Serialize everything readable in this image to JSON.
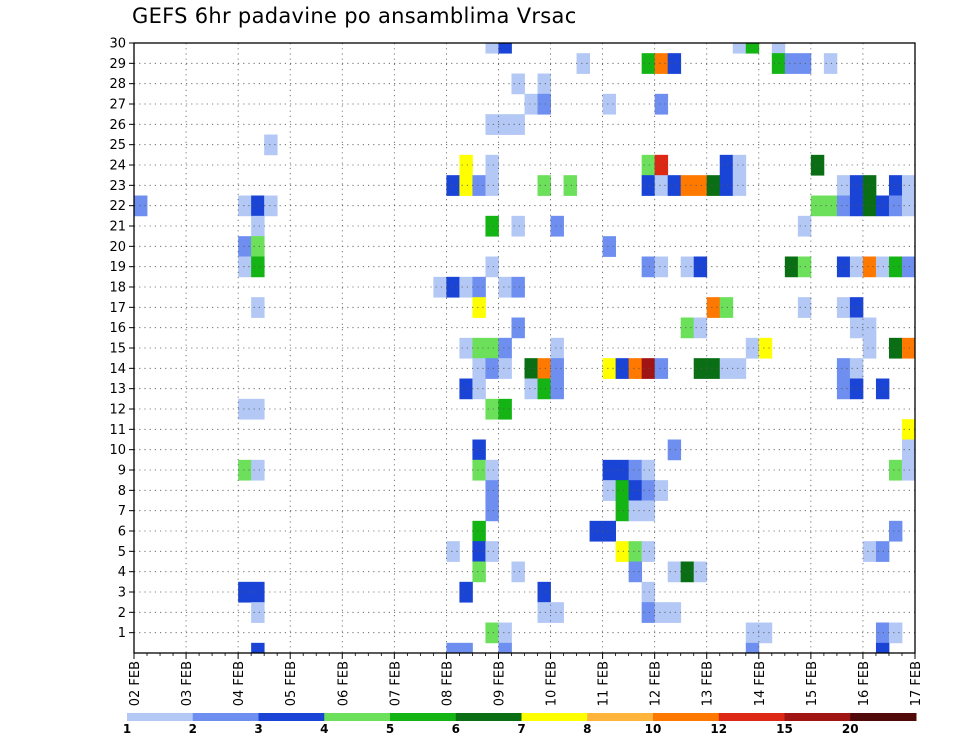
{
  "chart_data": {
    "type": "heatmap",
    "title": "GEFS 6hr padavine po ansamblima Vrsac",
    "xlabel": "",
    "ylabel": "",
    "x_ticks": [
      "02 FEB",
      "03 FEB",
      "04 FEB",
      "05 FEB",
      "06 FEB",
      "07 FEB",
      "08 FEB",
      "09 FEB",
      "10 FEB",
      "11 FEB",
      "12 FEB",
      "13 FEB",
      "14 FEB",
      "15 FEB",
      "16 FEB",
      "17 FEB"
    ],
    "y_ticks": [
      "1",
      "2",
      "3",
      "4",
      "5",
      "6",
      "7",
      "8",
      "9",
      "10",
      "11",
      "12",
      "13",
      "14",
      "15",
      "16",
      "17",
      "18",
      "19",
      "20",
      "21",
      "22",
      "23",
      "24",
      "25",
      "26",
      "27",
      "28",
      "29",
      "30"
    ],
    "y_range": [
      0,
      30
    ],
    "x_range_steps_6h": [
      0,
      60
    ],
    "grid": "dotted",
    "colorbar": {
      "labels": [
        "1",
        "2",
        "3",
        "4",
        "5",
        "6",
        "7",
        "8",
        "10",
        "12",
        "15",
        "20"
      ],
      "colors": [
        "#b4c8f5",
        "#6e8ff0",
        "#1a44d6",
        "#6ce05a",
        "#14b414",
        "#0a6e14",
        "#ffff00",
        "#ffb43c",
        "#ff7800",
        "#dc2814",
        "#a01414",
        "#500a0a"
      ]
    },
    "cells": [
      {
        "m": 30,
        "t": [
          [
            27,
            1
          ],
          [
            28,
            3
          ],
          [
            46,
            1
          ],
          [
            47,
            5
          ],
          [
            49,
            1
          ]
        ]
      },
      {
        "m": 29,
        "t": [
          [
            34,
            1
          ],
          [
            39,
            5
          ],
          [
            40,
            9
          ],
          [
            41,
            3
          ],
          [
            49,
            5
          ],
          [
            50,
            2
          ],
          [
            51,
            2
          ],
          [
            53,
            1
          ]
        ]
      },
      {
        "m": 28,
        "t": [
          [
            29,
            1
          ],
          [
            31,
            1
          ]
        ]
      },
      {
        "m": 27,
        "t": [
          [
            30,
            1
          ],
          [
            31,
            2
          ],
          [
            36,
            1
          ],
          [
            40,
            2
          ]
        ]
      },
      {
        "m": 26,
        "t": [
          [
            27,
            1
          ],
          [
            28,
            1
          ],
          [
            29,
            1
          ]
        ]
      },
      {
        "m": 25,
        "t": [
          [
            10,
            1
          ]
        ]
      },
      {
        "m": 24,
        "t": [
          [
            25,
            7
          ],
          [
            27,
            1
          ],
          [
            39,
            4
          ],
          [
            40,
            10
          ],
          [
            45,
            3
          ],
          [
            46,
            1
          ],
          [
            52,
            6
          ]
        ]
      },
      {
        "m": 23,
        "t": [
          [
            24,
            3
          ],
          [
            25,
            7
          ],
          [
            26,
            2
          ],
          [
            27,
            1
          ],
          [
            31,
            4
          ],
          [
            33,
            4
          ],
          [
            39,
            3
          ],
          [
            40,
            1
          ],
          [
            41,
            3
          ],
          [
            42,
            9
          ],
          [
            43,
            9
          ],
          [
            44,
            6
          ],
          [
            45,
            3
          ],
          [
            46,
            1
          ],
          [
            54,
            1
          ],
          [
            55,
            3
          ],
          [
            56,
            6
          ],
          [
            58,
            3
          ],
          [
            59,
            1
          ]
        ]
      },
      {
        "m": 22,
        "t": [
          [
            0,
            2
          ],
          [
            8,
            1
          ],
          [
            9,
            3
          ],
          [
            10,
            1
          ],
          [
            52,
            4
          ],
          [
            53,
            4
          ],
          [
            54,
            2
          ],
          [
            55,
            3
          ],
          [
            56,
            6
          ],
          [
            57,
            3
          ],
          [
            58,
            2
          ],
          [
            59,
            1
          ]
        ]
      },
      {
        "m": 21,
        "t": [
          [
            9,
            1
          ],
          [
            27,
            5
          ],
          [
            29,
            1
          ],
          [
            32,
            2
          ],
          [
            51,
            1
          ]
        ]
      },
      {
        "m": 20,
        "t": [
          [
            8,
            2
          ],
          [
            9,
            4
          ],
          [
            36,
            2
          ]
        ]
      },
      {
        "m": 19,
        "t": [
          [
            8,
            1
          ],
          [
            9,
            5
          ],
          [
            27,
            1
          ],
          [
            39,
            2
          ],
          [
            40,
            1
          ],
          [
            42,
            1
          ],
          [
            43,
            3
          ],
          [
            50,
            6
          ],
          [
            51,
            4
          ],
          [
            54,
            3
          ],
          [
            55,
            1
          ],
          [
            56,
            9
          ],
          [
            57,
            1
          ],
          [
            58,
            5
          ],
          [
            59,
            2
          ]
        ]
      },
      {
        "m": 18,
        "t": [
          [
            23,
            1
          ],
          [
            24,
            3
          ],
          [
            25,
            1
          ],
          [
            26,
            2
          ],
          [
            28,
            1
          ],
          [
            29,
            2
          ]
        ]
      },
      {
        "m": 17,
        "t": [
          [
            9,
            1
          ],
          [
            26,
            7
          ],
          [
            44,
            9
          ],
          [
            45,
            4
          ],
          [
            51,
            1
          ],
          [
            54,
            1
          ],
          [
            55,
            3
          ]
        ]
      },
      {
        "m": 16,
        "t": [
          [
            29,
            2
          ],
          [
            42,
            4
          ],
          [
            43,
            1
          ],
          [
            55,
            1
          ],
          [
            56,
            1
          ]
        ]
      },
      {
        "m": 15,
        "t": [
          [
            25,
            1
          ],
          [
            26,
            4
          ],
          [
            27,
            4
          ],
          [
            28,
            2
          ],
          [
            32,
            1
          ],
          [
            47,
            1
          ],
          [
            48,
            7
          ],
          [
            56,
            1
          ],
          [
            58,
            6
          ],
          [
            59,
            9
          ]
        ]
      },
      {
        "m": 14,
        "t": [
          [
            26,
            1
          ],
          [
            27,
            2
          ],
          [
            28,
            1
          ],
          [
            30,
            6
          ],
          [
            31,
            9
          ],
          [
            32,
            2
          ],
          [
            36,
            7
          ],
          [
            37,
            3
          ],
          [
            38,
            9
          ],
          [
            39,
            11
          ],
          [
            40,
            2
          ],
          [
            43,
            6
          ],
          [
            44,
            6
          ],
          [
            45,
            1
          ],
          [
            46,
            1
          ],
          [
            54,
            2
          ],
          [
            55,
            1
          ]
        ]
      },
      {
        "m": 13,
        "t": [
          [
            25,
            3
          ],
          [
            26,
            1
          ],
          [
            30,
            1
          ],
          [
            31,
            5
          ],
          [
            32,
            2
          ],
          [
            54,
            2
          ],
          [
            55,
            3
          ],
          [
            57,
            3
          ]
        ]
      },
      {
        "m": 12,
        "t": [
          [
            8,
            1
          ],
          [
            9,
            1
          ],
          [
            27,
            4
          ],
          [
            28,
            5
          ]
        ]
      },
      {
        "m": 11,
        "t": [
          [
            59,
            7
          ]
        ]
      },
      {
        "m": 10,
        "t": [
          [
            26,
            3
          ],
          [
            41,
            2
          ],
          [
            59,
            1
          ]
        ]
      },
      {
        "m": 9,
        "t": [
          [
            8,
            4
          ],
          [
            9,
            1
          ],
          [
            26,
            4
          ],
          [
            27,
            1
          ],
          [
            36,
            3
          ],
          [
            37,
            3
          ],
          [
            38,
            2
          ],
          [
            39,
            1
          ],
          [
            58,
            4
          ],
          [
            59,
            1
          ]
        ]
      },
      {
        "m": 8,
        "t": [
          [
            27,
            2
          ],
          [
            36,
            1
          ],
          [
            37,
            5
          ],
          [
            38,
            3
          ],
          [
            39,
            2
          ],
          [
            40,
            1
          ]
        ]
      },
      {
        "m": 7,
        "t": [
          [
            27,
            2
          ],
          [
            37,
            5
          ],
          [
            38,
            1
          ],
          [
            39,
            1
          ]
        ]
      },
      {
        "m": 6,
        "t": [
          [
            26,
            5
          ],
          [
            35,
            3
          ],
          [
            36,
            3
          ],
          [
            58,
            2
          ]
        ]
      },
      {
        "m": 5,
        "t": [
          [
            24,
            1
          ],
          [
            26,
            3
          ],
          [
            27,
            1
          ],
          [
            37,
            7
          ],
          [
            38,
            4
          ],
          [
            39,
            1
          ],
          [
            56,
            1
          ],
          [
            57,
            2
          ]
        ]
      },
      {
        "m": 4,
        "t": [
          [
            26,
            4
          ],
          [
            29,
            1
          ],
          [
            38,
            2
          ],
          [
            41,
            1
          ],
          [
            42,
            6
          ],
          [
            43,
            1
          ]
        ]
      },
      {
        "m": 3,
        "t": [
          [
            8,
            3
          ],
          [
            9,
            3
          ],
          [
            25,
            3
          ],
          [
            31,
            3
          ],
          [
            39,
            1
          ]
        ]
      },
      {
        "m": 2,
        "t": [
          [
            9,
            1
          ],
          [
            31,
            1
          ],
          [
            32,
            1
          ],
          [
            39,
            2
          ],
          [
            40,
            1
          ],
          [
            41,
            1
          ]
        ]
      },
      {
        "m": 1,
        "t": [
          [
            27,
            4
          ],
          [
            28,
            1
          ],
          [
            47,
            1
          ],
          [
            48,
            1
          ],
          [
            57,
            2
          ],
          [
            58,
            1
          ]
        ]
      },
      {
        "m": 0,
        "t": [
          [
            9,
            3
          ],
          [
            24,
            2
          ],
          [
            25,
            2
          ],
          [
            28,
            2
          ],
          [
            47,
            2
          ],
          [
            57,
            3
          ]
        ]
      }
    ]
  }
}
